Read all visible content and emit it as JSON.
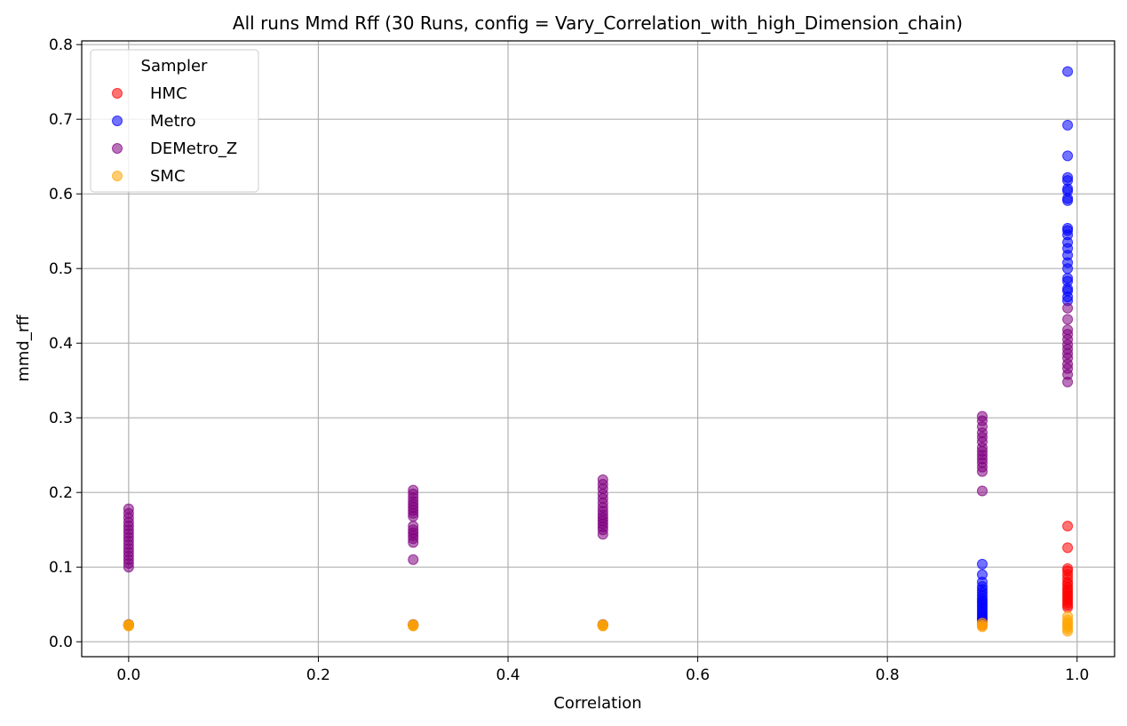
{
  "chart_data": {
    "type": "scatter",
    "title": "All runs Mmd Rff (30 Runs, config = Vary_Correlation_with_high_Dimension_chain)",
    "xlabel": "Correlation",
    "ylabel": "mmd_rff",
    "xlim": [
      -0.0495,
      1.0395
    ],
    "ylim": [
      -0.02,
      0.805
    ],
    "xticks": [
      0.0,
      0.2,
      0.4,
      0.6,
      0.8,
      1.0
    ],
    "xtick_labels": [
      "0.0",
      "0.2",
      "0.4",
      "0.6",
      "0.8",
      "1.0"
    ],
    "yticks": [
      0.0,
      0.1,
      0.2,
      0.3,
      0.4,
      0.5,
      0.6,
      0.7,
      0.8
    ],
    "ytick_labels": [
      "0.0",
      "0.1",
      "0.2",
      "0.3",
      "0.4",
      "0.5",
      "0.6",
      "0.7",
      "0.8"
    ],
    "grid": true,
    "legend": {
      "title": "Sampler",
      "placement": "upper-left"
    },
    "series": [
      {
        "name": "HMC",
        "color": "#ff0000",
        "points": [
          [
            0.0,
            0.022
          ],
          [
            0.0,
            0.022
          ],
          [
            0.0,
            0.023
          ],
          [
            0.3,
            0.022
          ],
          [
            0.3,
            0.022
          ],
          [
            0.3,
            0.023
          ],
          [
            0.5,
            0.022
          ],
          [
            0.5,
            0.022
          ],
          [
            0.5,
            0.023
          ],
          [
            0.9,
            0.022
          ],
          [
            0.9,
            0.025
          ],
          [
            0.9,
            0.028
          ],
          [
            0.9,
            0.03
          ],
          [
            0.99,
            0.155
          ],
          [
            0.99,
            0.126
          ],
          [
            0.99,
            0.098
          ],
          [
            0.99,
            0.095
          ],
          [
            0.99,
            0.09
          ],
          [
            0.99,
            0.085
          ],
          [
            0.99,
            0.08
          ],
          [
            0.99,
            0.077
          ],
          [
            0.99,
            0.073
          ],
          [
            0.99,
            0.07
          ],
          [
            0.99,
            0.067
          ],
          [
            0.99,
            0.064
          ],
          [
            0.99,
            0.061
          ],
          [
            0.99,
            0.058
          ],
          [
            0.99,
            0.055
          ],
          [
            0.99,
            0.052
          ],
          [
            0.99,
            0.049
          ],
          [
            0.99,
            0.046
          ]
        ]
      },
      {
        "name": "Metro",
        "color": "#0000ff",
        "points": [
          [
            0.0,
            0.022
          ],
          [
            0.0,
            0.023
          ],
          [
            0.3,
            0.022
          ],
          [
            0.3,
            0.023
          ],
          [
            0.5,
            0.022
          ],
          [
            0.5,
            0.023
          ],
          [
            0.9,
            0.104
          ],
          [
            0.9,
            0.09
          ],
          [
            0.9,
            0.08
          ],
          [
            0.9,
            0.074
          ],
          [
            0.9,
            0.07
          ],
          [
            0.9,
            0.066
          ],
          [
            0.9,
            0.062
          ],
          [
            0.9,
            0.058
          ],
          [
            0.9,
            0.055
          ],
          [
            0.9,
            0.052
          ],
          [
            0.9,
            0.049
          ],
          [
            0.9,
            0.046
          ],
          [
            0.9,
            0.043
          ],
          [
            0.9,
            0.04
          ],
          [
            0.9,
            0.037
          ],
          [
            0.9,
            0.034
          ],
          [
            0.9,
            0.031
          ],
          [
            0.99,
            0.764
          ],
          [
            0.99,
            0.692
          ],
          [
            0.99,
            0.651
          ],
          [
            0.99,
            0.622
          ],
          [
            0.99,
            0.618
          ],
          [
            0.99,
            0.607
          ],
          [
            0.99,
            0.604
          ],
          [
            0.99,
            0.594
          ],
          [
            0.99,
            0.591
          ],
          [
            0.99,
            0.554
          ],
          [
            0.99,
            0.551
          ],
          [
            0.99,
            0.545
          ],
          [
            0.99,
            0.535
          ],
          [
            0.99,
            0.527
          ],
          [
            0.99,
            0.518
          ],
          [
            0.99,
            0.508
          ],
          [
            0.99,
            0.5
          ],
          [
            0.99,
            0.487
          ],
          [
            0.99,
            0.483
          ],
          [
            0.99,
            0.473
          ],
          [
            0.99,
            0.47
          ],
          [
            0.99,
            0.462
          ],
          [
            0.99,
            0.457
          ]
        ]
      },
      {
        "name": "DEMetro_Z",
        "color": "#800080",
        "points": [
          [
            0.0,
            0.178
          ],
          [
            0.0,
            0.172
          ],
          [
            0.0,
            0.166
          ],
          [
            0.0,
            0.16
          ],
          [
            0.0,
            0.155
          ],
          [
            0.0,
            0.15
          ],
          [
            0.0,
            0.145
          ],
          [
            0.0,
            0.14
          ],
          [
            0.0,
            0.135
          ],
          [
            0.0,
            0.13
          ],
          [
            0.0,
            0.125
          ],
          [
            0.0,
            0.12
          ],
          [
            0.0,
            0.115
          ],
          [
            0.0,
            0.11
          ],
          [
            0.0,
            0.105
          ],
          [
            0.0,
            0.1
          ],
          [
            0.3,
            0.203
          ],
          [
            0.3,
            0.198
          ],
          [
            0.3,
            0.193
          ],
          [
            0.3,
            0.188
          ],
          [
            0.3,
            0.184
          ],
          [
            0.3,
            0.18
          ],
          [
            0.3,
            0.176
          ],
          [
            0.3,
            0.172
          ],
          [
            0.3,
            0.168
          ],
          [
            0.3,
            0.155
          ],
          [
            0.3,
            0.15
          ],
          [
            0.3,
            0.146
          ],
          [
            0.3,
            0.142
          ],
          [
            0.3,
            0.138
          ],
          [
            0.3,
            0.133
          ],
          [
            0.3,
            0.11
          ],
          [
            0.5,
            0.217
          ],
          [
            0.5,
            0.211
          ],
          [
            0.5,
            0.205
          ],
          [
            0.5,
            0.198
          ],
          [
            0.5,
            0.192
          ],
          [
            0.5,
            0.186
          ],
          [
            0.5,
            0.18
          ],
          [
            0.5,
            0.175
          ],
          [
            0.5,
            0.17
          ],
          [
            0.5,
            0.166
          ],
          [
            0.5,
            0.162
          ],
          [
            0.5,
            0.158
          ],
          [
            0.5,
            0.154
          ],
          [
            0.5,
            0.15
          ],
          [
            0.5,
            0.144
          ],
          [
            0.9,
            0.302
          ],
          [
            0.9,
            0.296
          ],
          [
            0.9,
            0.288
          ],
          [
            0.9,
            0.28
          ],
          [
            0.9,
            0.274
          ],
          [
            0.9,
            0.268
          ],
          [
            0.9,
            0.26
          ],
          [
            0.9,
            0.255
          ],
          [
            0.9,
            0.25
          ],
          [
            0.9,
            0.245
          ],
          [
            0.9,
            0.24
          ],
          [
            0.9,
            0.234
          ],
          [
            0.9,
            0.228
          ],
          [
            0.9,
            0.202
          ],
          [
            0.99,
            0.447
          ],
          [
            0.99,
            0.432
          ],
          [
            0.99,
            0.418
          ],
          [
            0.99,
            0.412
          ],
          [
            0.99,
            0.405
          ],
          [
            0.99,
            0.398
          ],
          [
            0.99,
            0.392
          ],
          [
            0.99,
            0.386
          ],
          [
            0.99,
            0.38
          ],
          [
            0.99,
            0.372
          ],
          [
            0.99,
            0.366
          ],
          [
            0.99,
            0.358
          ],
          [
            0.99,
            0.348
          ]
        ]
      },
      {
        "name": "SMC",
        "color": "#ffa500",
        "points": [
          [
            0.0,
            0.022
          ],
          [
            0.0,
            0.022
          ],
          [
            0.0,
            0.023
          ],
          [
            0.0,
            0.021
          ],
          [
            0.3,
            0.022
          ],
          [
            0.3,
            0.022
          ],
          [
            0.3,
            0.023
          ],
          [
            0.3,
            0.021
          ],
          [
            0.5,
            0.022
          ],
          [
            0.5,
            0.022
          ],
          [
            0.5,
            0.023
          ],
          [
            0.5,
            0.021
          ],
          [
            0.9,
            0.025
          ],
          [
            0.9,
            0.022
          ],
          [
            0.9,
            0.02
          ],
          [
            0.99,
            0.034
          ],
          [
            0.99,
            0.029
          ],
          [
            0.99,
            0.026
          ],
          [
            0.99,
            0.023
          ],
          [
            0.99,
            0.02
          ],
          [
            0.99,
            0.017
          ],
          [
            0.99,
            0.014
          ]
        ]
      }
    ]
  }
}
